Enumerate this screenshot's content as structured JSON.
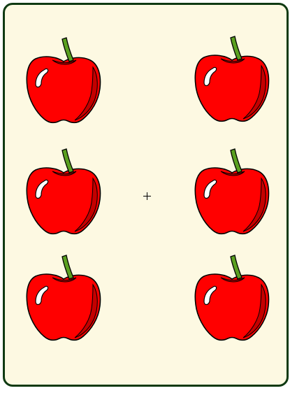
{
  "game": {
    "item_type": "apple",
    "item_count": 6,
    "grid": {
      "columns": 2,
      "rows": 3
    },
    "center_marker": "crosshair-icon"
  },
  "colors": {
    "board_background": "#fdf9e2",
    "board_border": "#0f3a12",
    "apple_red": "#ff0000",
    "apple_shadow": "#c40000",
    "stem_green": "#5aa020",
    "outline": "#000000",
    "highlight": "#ffffff"
  }
}
